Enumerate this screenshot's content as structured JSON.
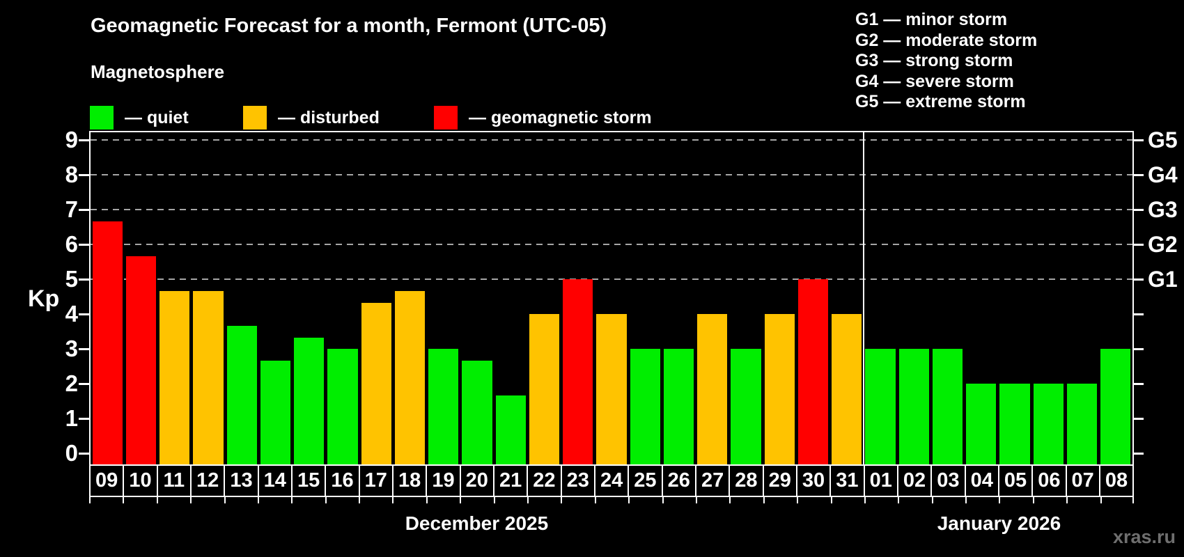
{
  "header": {
    "title": "Geomagnetic Forecast for a month, Fermont (UTC-05)",
    "subtitle": "Magnetosphere"
  },
  "legend": {
    "items": [
      {
        "key": "quiet",
        "label": "— quiet",
        "color": "#00EE00"
      },
      {
        "key": "disturbed",
        "label": "— disturbed",
        "color": "#FFC300"
      },
      {
        "key": "storm",
        "label": "— geomagnetic storm",
        "color": "#FF0000"
      }
    ]
  },
  "storm_scale_legend": {
    "items": [
      "G1 — minor storm",
      "G2 — moderate storm",
      "G3 — strong storm",
      "G4 — severe storm",
      "G5 — extreme storm"
    ]
  },
  "chart_data": {
    "type": "bar",
    "title": "Geomagnetic Forecast for a month, Fermont (UTC-05)",
    "ylabel": "Kp",
    "ylim": [
      0,
      9
    ],
    "yticks": [
      0,
      1,
      2,
      3,
      4,
      5,
      6,
      7,
      8,
      9
    ],
    "grid_levels": [
      5,
      6,
      7,
      8,
      9
    ],
    "grid": "dashed-horizontal",
    "legend_position": "top-left",
    "right_axis_labels": [
      {
        "level": 5,
        "label": "G1"
      },
      {
        "level": 6,
        "label": "G2"
      },
      {
        "level": 7,
        "label": "G3"
      },
      {
        "level": 8,
        "label": "G4"
      },
      {
        "level": 9,
        "label": "G5"
      }
    ],
    "months": [
      {
        "label": "December 2025",
        "days": 23
      },
      {
        "label": "January 2026",
        "days": 8
      }
    ],
    "categories": [
      "09",
      "10",
      "11",
      "12",
      "13",
      "14",
      "15",
      "16",
      "17",
      "18",
      "19",
      "20",
      "21",
      "22",
      "23",
      "24",
      "25",
      "26",
      "27",
      "28",
      "29",
      "30",
      "31",
      "01",
      "02",
      "03",
      "04",
      "05",
      "06",
      "07",
      "08"
    ],
    "series": [
      {
        "name": "Kp forecast",
        "values": [
          6.67,
          5.67,
          4.67,
          4.67,
          3.67,
          2.67,
          3.33,
          3,
          4.33,
          4.67,
          3,
          2.67,
          1.67,
          4,
          5,
          4,
          3,
          3,
          4,
          3,
          4,
          5,
          4,
          3,
          3,
          3,
          2,
          2,
          2,
          2,
          3
        ]
      }
    ],
    "statuses": [
      "storm",
      "storm",
      "disturbed",
      "disturbed",
      "quiet",
      "quiet",
      "quiet",
      "quiet",
      "disturbed",
      "disturbed",
      "quiet",
      "quiet",
      "quiet",
      "disturbed",
      "storm",
      "disturbed",
      "quiet",
      "quiet",
      "disturbed",
      "quiet",
      "disturbed",
      "storm",
      "disturbed",
      "quiet",
      "quiet",
      "quiet",
      "quiet",
      "quiet",
      "quiet",
      "quiet",
      "quiet"
    ],
    "status_colors": {
      "quiet": "#00EE00",
      "disturbed": "#FFC300",
      "storm": "#FF0000"
    }
  },
  "watermark": "xras.ru"
}
